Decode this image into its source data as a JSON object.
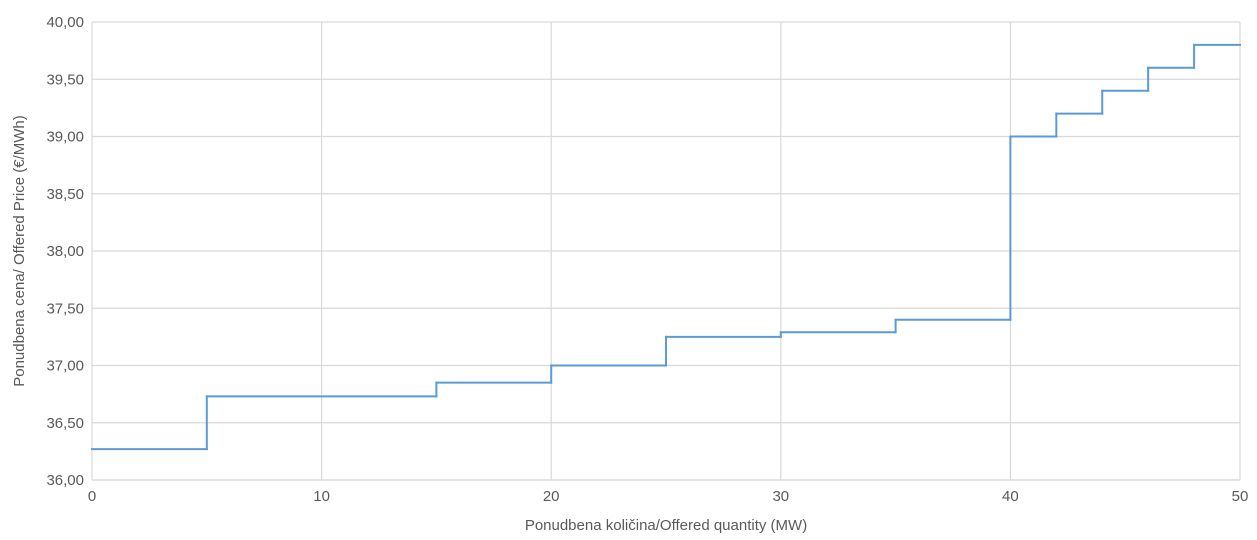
{
  "chart_data": {
    "type": "line",
    "subtype": "step",
    "title": "",
    "xlabel": "Ponudbena količina/Offered quantity (MW)",
    "ylabel": "Ponudbena cena/ Offered Price (€/MWh)",
    "xlim": [
      0,
      50
    ],
    "ylim": [
      36.0,
      40.0
    ],
    "x_ticks": [
      0,
      10,
      20,
      30,
      40,
      50
    ],
    "x_tick_labels": [
      "0",
      "10",
      "20",
      "30",
      "40",
      "50"
    ],
    "y_ticks": [
      36.0,
      36.5,
      37.0,
      37.5,
      38.0,
      38.5,
      39.0,
      39.5,
      40.0
    ],
    "y_tick_labels": [
      "36,00",
      "36,50",
      "37,00",
      "37,50",
      "38,00",
      "38,50",
      "39,00",
      "39,50",
      "40,00"
    ],
    "grid": true,
    "legend": "none",
    "series": [
      {
        "color": "#5b9bd5",
        "steps": [
          {
            "x_start": 0,
            "x_end": 5,
            "y": 36.27
          },
          {
            "x_start": 5,
            "x_end": 15,
            "y": 36.73
          },
          {
            "x_start": 15,
            "x_end": 20,
            "y": 36.85
          },
          {
            "x_start": 20,
            "x_end": 25,
            "y": 37.0
          },
          {
            "x_start": 25,
            "x_end": 30,
            "y": 37.25
          },
          {
            "x_start": 30,
            "x_end": 35,
            "y": 37.29
          },
          {
            "x_start": 35,
            "x_end": 40,
            "y": 37.4
          },
          {
            "x_start": 40,
            "x_end": 42,
            "y": 39.0
          },
          {
            "x_start": 42,
            "x_end": 44,
            "y": 39.2
          },
          {
            "x_start": 44,
            "x_end": 46,
            "y": 39.4
          },
          {
            "x_start": 46,
            "x_end": 48,
            "y": 39.6
          },
          {
            "x_start": 48,
            "x_end": 50,
            "y": 39.8
          }
        ]
      }
    ]
  }
}
